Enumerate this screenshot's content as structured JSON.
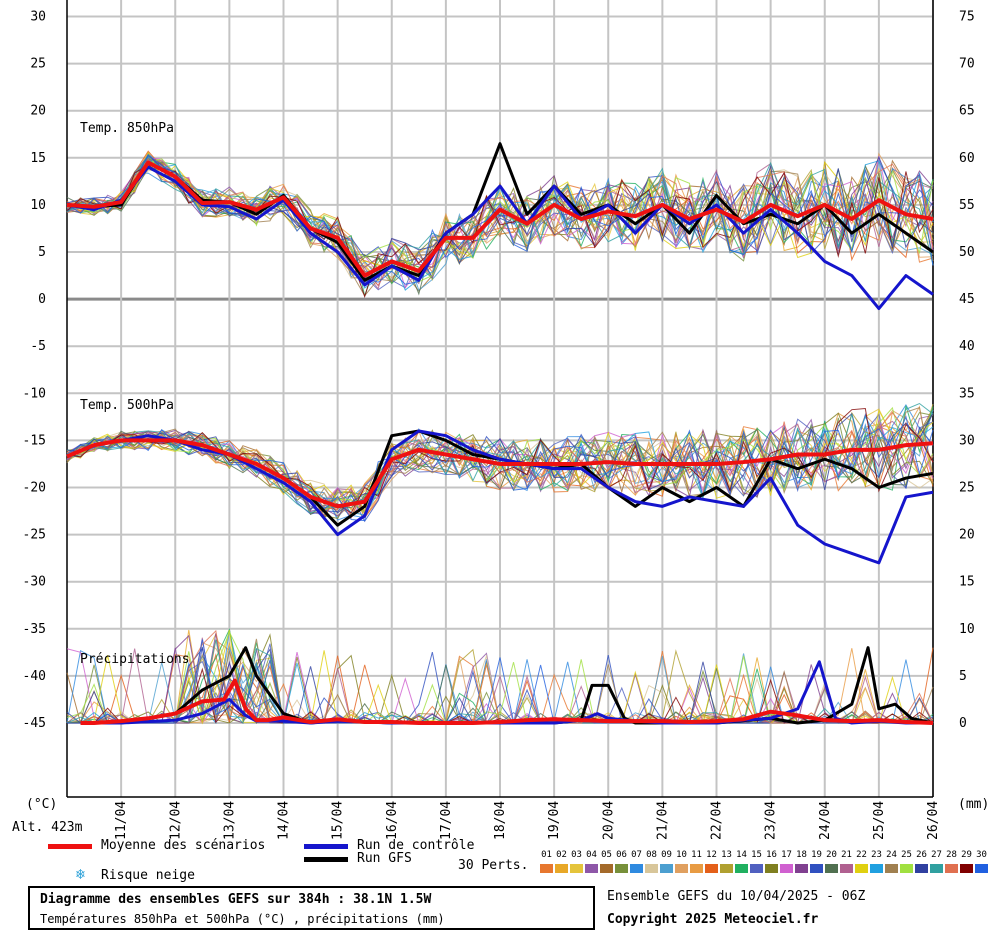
{
  "chart_data": {
    "type": "line",
    "title": "Diagramme des ensembles GEFS sur 384h : 38.1N 1.5W",
    "subtitle": "Températures 850hPa et 500hPa (°C) , précipitations (mm)",
    "left_axis": {
      "label": "(°C)",
      "ticks": [
        30,
        25,
        20,
        15,
        10,
        5,
        0,
        -5,
        -10,
        -15,
        -20,
        -25,
        -30,
        -35,
        -40,
        -45
      ],
      "ylim": [
        -54,
        31
      ]
    },
    "right_axis": {
      "label": "(mm)",
      "ticks": [
        75,
        70,
        65,
        60,
        55,
        50,
        45,
        40,
        35,
        30,
        25,
        20,
        15,
        10,
        5,
        0
      ],
      "ylim": [
        -9,
        76
      ]
    },
    "x_dates": [
      "11/04",
      "12/04",
      "13/04",
      "14/04",
      "15/04",
      "16/04",
      "17/04",
      "18/04",
      "19/04",
      "20/04",
      "21/04",
      "22/04",
      "23/04",
      "24/04",
      "25/04",
      "26/04"
    ],
    "x_range_days": [
      0,
      16
    ],
    "altitude": "Alt. 423m",
    "panel_labels": [
      "Temp. 850hPa",
      "Temp. 500hPa",
      "Précipitations"
    ],
    "series": [
      {
        "name": "Moyenne des scénarios",
        "field": "t850",
        "color": "#ee1111",
        "x": [
          0,
          0.5,
          1,
          1.5,
          2,
          2.5,
          3,
          3.5,
          4,
          4.5,
          5,
          5.5,
          6,
          6.5,
          7,
          7.5,
          8,
          8.5,
          9,
          9.5,
          10,
          10.5,
          11,
          11.5,
          12,
          12.5,
          13,
          13.5,
          14,
          14.5,
          15,
          15.5,
          16
        ],
        "values": [
          10,
          9.8,
          10.3,
          14.5,
          13,
          10.2,
          10.3,
          9.5,
          10.8,
          7.5,
          6.5,
          2.5,
          4,
          3,
          6.5,
          6.5,
          9.5,
          8,
          10,
          8.5,
          9.3,
          8.8,
          10,
          8.5,
          9.5,
          8.2,
          10,
          8.8,
          10,
          8.5,
          10.5,
          9,
          8.5
        ]
      },
      {
        "name": "Run de contrôle",
        "field": "t850",
        "color": "#1515cc",
        "x": [
          0,
          0.5,
          1,
          1.5,
          2,
          2.5,
          3,
          3.5,
          4,
          4.5,
          5,
          5.5,
          6,
          6.5,
          7,
          7.5,
          8,
          8.5,
          9,
          9.5,
          10,
          10.5,
          11,
          11.5,
          12,
          12.5,
          13,
          13.5,
          14,
          14.5,
          15,
          15.5,
          16
        ],
        "values": [
          10,
          9.5,
          10.5,
          14,
          12.5,
          10,
          9.8,
          8.5,
          10.5,
          7,
          5,
          1.5,
          3.5,
          2,
          7,
          9,
          12,
          8,
          12,
          8.5,
          10,
          7,
          10,
          8,
          10,
          7,
          9.5,
          7,
          4,
          2.5,
          -1,
          2.5,
          0.5
        ]
      },
      {
        "name": "Run GFS",
        "field": "t850",
        "color": "#000000",
        "x": [
          0,
          0.5,
          1,
          1.5,
          2,
          2.5,
          3,
          3.5,
          4,
          4.5,
          5,
          5.5,
          6,
          6.5,
          7,
          7.5,
          8,
          8.5,
          9,
          9.5,
          10,
          10.5,
          11,
          11.5,
          12,
          12.5,
          13,
          13.5,
          14,
          14.5,
          15,
          15.5,
          16
        ],
        "values": [
          10,
          9.8,
          10,
          14.5,
          13,
          10.5,
          10.3,
          9,
          11,
          7.5,
          6,
          2,
          3.5,
          2.5,
          7,
          9,
          16.5,
          9,
          12,
          9,
          10,
          8,
          10,
          7,
          11,
          8,
          9,
          8,
          10,
          7,
          9,
          7,
          5
        ]
      },
      {
        "name": "Moyenne des scénarios",
        "field": "t500",
        "color": "#ee1111",
        "x": [
          0,
          0.5,
          1,
          1.5,
          2,
          2.5,
          3,
          3.5,
          4,
          4.5,
          5,
          5.5,
          6,
          6.5,
          7,
          7.5,
          8,
          8.5,
          9,
          9.5,
          10,
          10.5,
          11,
          11.5,
          12,
          12.5,
          13,
          13.5,
          14,
          14.5,
          15,
          15.5,
          16
        ],
        "values": [
          -16.7,
          -15.5,
          -15,
          -15,
          -15,
          -15.5,
          -16.5,
          -17.5,
          -19,
          -21,
          -22,
          -21.5,
          -17,
          -16,
          -16.5,
          -17,
          -17.5,
          -17.5,
          -17.5,
          -17.5,
          -17.3,
          -17.5,
          -17.5,
          -17.5,
          -17.5,
          -17.3,
          -17,
          -16.5,
          -16.5,
          -16,
          -16,
          -15.5,
          -15.3
        ]
      },
      {
        "name": "Run de contrôle",
        "field": "t500",
        "color": "#1515cc",
        "x": [
          0,
          0.5,
          1,
          1.5,
          2,
          2.5,
          3,
          3.5,
          4,
          4.5,
          5,
          5.5,
          6,
          6.5,
          7,
          7.5,
          8,
          8.5,
          9,
          9.5,
          10,
          10.5,
          11,
          11.5,
          12,
          12.5,
          13,
          13.5,
          14,
          14.5,
          15,
          15.5,
          16
        ],
        "values": [
          -16.7,
          -15.5,
          -15,
          -14.5,
          -15,
          -16,
          -16.5,
          -18,
          -19.5,
          -21.5,
          -25,
          -23,
          -16,
          -14,
          -14.5,
          -16,
          -17,
          -17.5,
          -18,
          -18,
          -20,
          -21.5,
          -22,
          -21,
          -21.5,
          -22,
          -19,
          -24,
          -26,
          -27,
          -28,
          -21,
          -20.5
        ]
      },
      {
        "name": "Run GFS",
        "field": "t500",
        "color": "#000000",
        "x": [
          0,
          0.5,
          1,
          1.5,
          2,
          2.5,
          3,
          3.5,
          4,
          4.5,
          5,
          5.5,
          6,
          6.5,
          7,
          7.5,
          8,
          8.5,
          9,
          9.5,
          10,
          10.5,
          11,
          11.5,
          12,
          12.5,
          13,
          13.5,
          14,
          14.5,
          15,
          15.5,
          16
        ],
        "values": [
          -16.7,
          -15.5,
          -15,
          -15,
          -15,
          -15.5,
          -16.5,
          -17.5,
          -19,
          -21,
          -24,
          -22,
          -14.5,
          -14,
          -15,
          -16.5,
          -17,
          -17.5,
          -18,
          -17.5,
          -20,
          -22,
          -20,
          -21.5,
          -20,
          -22,
          -17,
          -18,
          -17,
          -18,
          -20,
          -19,
          -18.5
        ]
      },
      {
        "name": "Moyenne des scénarios",
        "field": "precip",
        "color": "#ee1111",
        "x": [
          0.25,
          0.5,
          1,
          1.5,
          2,
          2.5,
          2.9,
          3.1,
          3.3,
          3.5,
          3.7,
          4,
          4.5,
          5,
          5.5,
          6,
          6.5,
          7,
          7.5,
          8,
          8.5,
          9,
          9.5,
          10,
          10.5,
          11,
          11.5,
          12,
          12.5,
          13,
          13.5,
          14,
          14.5,
          15,
          15.5,
          16
        ],
        "values": [
          0,
          0,
          0.2,
          0.5,
          1,
          2.3,
          2.5,
          4.5,
          1.5,
          0.3,
          0.3,
          0.6,
          0.1,
          0.4,
          0.1,
          0.1,
          0,
          0,
          0,
          0.1,
          0.3,
          0.4,
          0.3,
          0.2,
          0.2,
          0.2,
          0.1,
          0.2,
          0.4,
          1.2,
          0.8,
          0.3,
          0.2,
          0.3,
          0.1,
          0
        ]
      },
      {
        "name": "Run de contrôle",
        "field": "precip",
        "color": "#1515cc",
        "x": [
          0.25,
          1,
          2,
          2.5,
          3,
          3.3,
          3.5,
          4,
          4.5,
          5,
          6,
          7,
          8,
          9,
          9.5,
          9.8,
          10,
          10.5,
          11,
          12,
          12.5,
          13,
          13.5,
          13.9,
          14.2,
          14.5,
          15,
          15.5,
          16
        ],
        "values": [
          0,
          0,
          0.3,
          1,
          2.5,
          0.8,
          0.2,
          0.2,
          0,
          0.2,
          0,
          0,
          0,
          0,
          0.3,
          1,
          0.5,
          0.2,
          0,
          0,
          0.3,
          0.5,
          1.5,
          6.5,
          0.5,
          0,
          0.2,
          0,
          0
        ]
      },
      {
        "name": "Run GFS",
        "field": "precip",
        "color": "#000000",
        "x": [
          0.25,
          1,
          2,
          2.5,
          3,
          3.3,
          3.5,
          4,
          4.5,
          5,
          6,
          7,
          8,
          9,
          9.5,
          9.7,
          10,
          10.3,
          10.5,
          11,
          12,
          13,
          13.5,
          14,
          14.5,
          14.8,
          15,
          15.3,
          15.6,
          16
        ],
        "values": [
          0,
          0,
          1,
          3.5,
          5,
          8,
          5,
          1,
          0,
          0.3,
          0,
          0,
          0,
          0,
          0.3,
          4,
          4,
          0.5,
          0,
          0,
          0,
          0.5,
          0,
          0.3,
          2,
          8,
          1.5,
          2,
          0.5,
          0
        ]
      }
    ],
    "perturbations": {
      "count_label": "30 Perts.",
      "count": 30
    }
  },
  "legend": {
    "mean_label": "Moyenne des scénarios",
    "control_label": "Run de contrôle",
    "gfs_label": "Run GFS",
    "perts_label": "30 Perts.",
    "snow_label": "Risque neige",
    "member_numbers": [
      "01",
      "02",
      "03",
      "04",
      "05",
      "06",
      "07",
      "08",
      "09",
      "10",
      "11",
      "12",
      "13",
      "14",
      "15",
      "16",
      "17",
      "18",
      "19",
      "20",
      "21",
      "22",
      "23",
      "24",
      "25",
      "26",
      "27",
      "28",
      "29",
      "30"
    ],
    "member_colors": [
      "#e7772f",
      "#e8a828",
      "#e5c43b",
      "#8e57a8",
      "#a46a2a",
      "#77903a",
      "#2f8ae0",
      "#d8c69a",
      "#4c9fd0",
      "#e0a060",
      "#e89b43",
      "#e4601a",
      "#b0a030",
      "#20b060",
      "#5060c0",
      "#7f7f20",
      "#d060d0",
      "#804090",
      "#3050c0",
      "#507050",
      "#b06090",
      "#e0d010",
      "#20a0e0",
      "#a08050",
      "#a0e040",
      "#3040a0",
      "#30a0a0",
      "#e07050",
      "#800000",
      "#2060e0"
    ]
  },
  "footer": {
    "title": "Diagramme des ensembles GEFS sur 384h : 38.1N 1.5W",
    "subtitle": "Températures 850hPa et 500hPa (°C) , précipitations (mm)",
    "run_info": "Ensemble GEFS du 10/04/2025 - 06Z",
    "copyright": "Copyright 2025 Meteociel.fr"
  }
}
